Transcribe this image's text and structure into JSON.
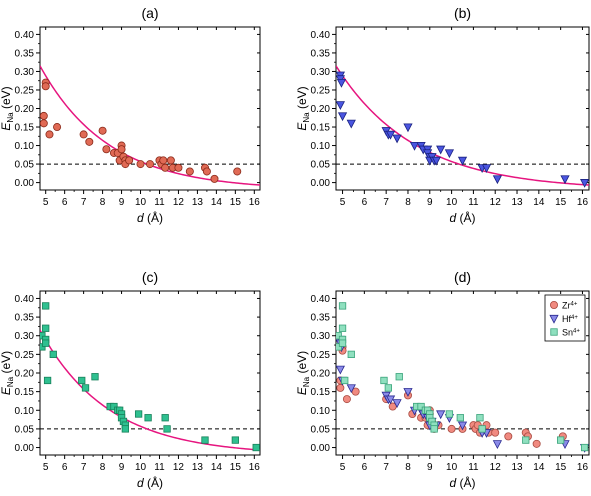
{
  "figure": {
    "panels": [
      "(a)",
      "(b)",
      "(c)",
      "(d)"
    ]
  },
  "chart_data": [
    {
      "type": "scatter",
      "title": "(a)",
      "xlabel_main": "d",
      "xlabel_unit": "(Å)",
      "ylabel_main": "E",
      "ylabel_sub": "Na",
      "ylabel_unit": "(eV)",
      "xlim": [
        4.7,
        16.3
      ],
      "ylim": [
        -0.02,
        0.42
      ],
      "xticks": [
        5,
        6,
        7,
        8,
        9,
        10,
        11,
        12,
        13,
        14,
        15,
        16
      ],
      "yticks": [
        "0.00",
        "0.05",
        "0.10",
        "0.15",
        "0.20",
        "0.25",
        "0.30",
        "0.35",
        "0.40"
      ],
      "marker": "circle",
      "color": "#e06a55",
      "edge": "#8a2a1a",
      "reference_line": 0.05,
      "fit_color": "#e6157f",
      "fit": {
        "a": 0.335,
        "d0": 4.7,
        "lambda": 3.6,
        "c": -0.02
      },
      "points": [
        [
          4.9,
          0.18
        ],
        [
          4.9,
          0.16
        ],
        [
          5.0,
          0.27
        ],
        [
          5.0,
          0.26
        ],
        [
          5.2,
          0.13
        ],
        [
          5.6,
          0.15
        ],
        [
          7.0,
          0.13
        ],
        [
          7.3,
          0.11
        ],
        [
          8.0,
          0.14
        ],
        [
          8.2,
          0.09
        ],
        [
          8.6,
          0.08
        ],
        [
          8.8,
          0.08
        ],
        [
          8.9,
          0.06
        ],
        [
          9.0,
          0.1
        ],
        [
          9.0,
          0.09
        ],
        [
          9.1,
          0.07
        ],
        [
          9.2,
          0.06
        ],
        [
          9.2,
          0.05
        ],
        [
          9.4,
          0.06
        ],
        [
          10.0,
          0.05
        ],
        [
          10.5,
          0.05
        ],
        [
          11.0,
          0.06
        ],
        [
          11.1,
          0.05
        ],
        [
          11.2,
          0.06
        ],
        [
          11.3,
          0.04
        ],
        [
          11.6,
          0.06
        ],
        [
          11.7,
          0.04
        ],
        [
          12.0,
          0.04
        ],
        [
          12.6,
          0.03
        ],
        [
          13.4,
          0.04
        ],
        [
          13.5,
          0.03
        ],
        [
          13.9,
          0.01
        ],
        [
          15.1,
          0.03
        ]
      ]
    },
    {
      "type": "scatter",
      "title": "(b)",
      "xlabel_main": "d",
      "xlabel_unit": "(Å)",
      "ylabel_main": "E",
      "ylabel_sub": "Na",
      "ylabel_unit": "(eV)",
      "xlim": [
        4.7,
        16.3
      ],
      "ylim": [
        -0.02,
        0.42
      ],
      "xticks": [
        5,
        6,
        7,
        8,
        9,
        10,
        11,
        12,
        13,
        14,
        15,
        16
      ],
      "yticks": [
        "0.00",
        "0.05",
        "0.10",
        "0.15",
        "0.20",
        "0.25",
        "0.30",
        "0.35",
        "0.40"
      ],
      "marker": "triangle-down",
      "color": "#4a55e0",
      "edge": "#1a2280",
      "reference_line": 0.05,
      "fit_color": "#e6157f",
      "fit": {
        "a": 0.335,
        "d0": 4.7,
        "lambda": 3.6,
        "c": -0.02
      },
      "points": [
        [
          4.9,
          0.29
        ],
        [
          4.9,
          0.28
        ],
        [
          4.95,
          0.27
        ],
        [
          4.9,
          0.21
        ],
        [
          5.0,
          0.18
        ],
        [
          5.4,
          0.16
        ],
        [
          7.0,
          0.14
        ],
        [
          7.1,
          0.13
        ],
        [
          7.2,
          0.13
        ],
        [
          7.5,
          0.12
        ],
        [
          8.0,
          0.15
        ],
        [
          8.3,
          0.1
        ],
        [
          8.6,
          0.1
        ],
        [
          8.7,
          0.09
        ],
        [
          8.9,
          0.09
        ],
        [
          8.9,
          0.08
        ],
        [
          9.0,
          0.07
        ],
        [
          9.0,
          0.06
        ],
        [
          9.1,
          0.07
        ],
        [
          9.2,
          0.06
        ],
        [
          9.3,
          0.06
        ],
        [
          9.5,
          0.09
        ],
        [
          9.9,
          0.08
        ],
        [
          10.5,
          0.06
        ],
        [
          11.4,
          0.04
        ],
        [
          11.6,
          0.04
        ],
        [
          12.1,
          0.01
        ],
        [
          15.2,
          0.01
        ],
        [
          16.1,
          0.0
        ]
      ]
    },
    {
      "type": "scatter",
      "title": "(c)",
      "xlabel_main": "d",
      "xlabel_unit": "(Å)",
      "ylabel_main": "E",
      "ylabel_sub": "Na",
      "ylabel_unit": "(eV)",
      "xlim": [
        4.7,
        16.3
      ],
      "ylim": [
        -0.02,
        0.42
      ],
      "xticks": [
        5,
        6,
        7,
        8,
        9,
        10,
        11,
        12,
        13,
        14,
        15,
        16
      ],
      "yticks": [
        "0.00",
        "0.05",
        "0.10",
        "0.15",
        "0.20",
        "0.25",
        "0.30",
        "0.35",
        "0.40"
      ],
      "marker": "square",
      "color": "#2fc090",
      "edge": "#17805a",
      "reference_line": 0.05,
      "fit_color": "#e6157f",
      "fit": {
        "a": 0.335,
        "d0": 4.7,
        "lambda": 3.6,
        "c": -0.02
      },
      "points": [
        [
          4.8,
          0.3
        ],
        [
          4.8,
          0.27
        ],
        [
          5.0,
          0.38
        ],
        [
          5.0,
          0.32
        ],
        [
          5.0,
          0.29
        ],
        [
          5.0,
          0.28
        ],
        [
          5.1,
          0.18
        ],
        [
          5.4,
          0.25
        ],
        [
          6.9,
          0.18
        ],
        [
          7.1,
          0.16
        ],
        [
          7.6,
          0.19
        ],
        [
          8.4,
          0.11
        ],
        [
          8.6,
          0.11
        ],
        [
          8.8,
          0.1
        ],
        [
          8.9,
          0.1
        ],
        [
          9.0,
          0.09
        ],
        [
          9.0,
          0.08
        ],
        [
          9.1,
          0.07
        ],
        [
          9.2,
          0.06
        ],
        [
          9.2,
          0.05
        ],
        [
          9.9,
          0.09
        ],
        [
          10.4,
          0.08
        ],
        [
          11.3,
          0.08
        ],
        [
          11.4,
          0.05
        ],
        [
          13.4,
          0.02
        ],
        [
          15.0,
          0.02
        ],
        [
          16.1,
          0.0
        ]
      ]
    },
    {
      "type": "scatter",
      "title": "(d)",
      "xlabel_main": "d",
      "xlabel_unit": "(Å)",
      "ylabel_main": "E",
      "ylabel_sub": "Na",
      "ylabel_unit": "(eV)",
      "xlim": [
        4.7,
        16.3
      ],
      "ylim": [
        -0.02,
        0.42
      ],
      "xticks": [
        5,
        6,
        7,
        8,
        9,
        10,
        11,
        12,
        13,
        14,
        15,
        16
      ],
      "yticks": [
        "0.00",
        "0.05",
        "0.10",
        "0.15",
        "0.20",
        "0.25",
        "0.30",
        "0.35",
        "0.40"
      ],
      "reference_line": 0.05,
      "legend_position": "top-right",
      "series": [
        {
          "name": "Zr",
          "charge": "4+",
          "marker": "circle",
          "color": "#f08a80",
          "edge": "#a84a40",
          "points": [
            [
              4.9,
              0.18
            ],
            [
              4.9,
              0.16
            ],
            [
              5.0,
              0.27
            ],
            [
              5.0,
              0.26
            ],
            [
              5.2,
              0.13
            ],
            [
              5.6,
              0.15
            ],
            [
              7.0,
              0.13
            ],
            [
              7.3,
              0.11
            ],
            [
              8.0,
              0.14
            ],
            [
              8.2,
              0.09
            ],
            [
              8.6,
              0.08
            ],
            [
              8.8,
              0.08
            ],
            [
              8.9,
              0.06
            ],
            [
              9.0,
              0.1
            ],
            [
              9.0,
              0.09
            ],
            [
              9.1,
              0.07
            ],
            [
              9.2,
              0.06
            ],
            [
              9.2,
              0.05
            ],
            [
              9.4,
              0.06
            ],
            [
              10.0,
              0.05
            ],
            [
              10.5,
              0.05
            ],
            [
              11.0,
              0.06
            ],
            [
              11.1,
              0.05
            ],
            [
              11.2,
              0.06
            ],
            [
              11.3,
              0.04
            ],
            [
              11.6,
              0.06
            ],
            [
              11.7,
              0.04
            ],
            [
              12.0,
              0.04
            ],
            [
              12.6,
              0.03
            ],
            [
              13.4,
              0.04
            ],
            [
              13.5,
              0.03
            ],
            [
              13.9,
              0.01
            ],
            [
              15.1,
              0.03
            ]
          ]
        },
        {
          "name": "Hf",
          "charge": "4+",
          "marker": "triangle-down",
          "color": "#8a8ae8",
          "edge": "#2a2a90",
          "points": [
            [
              4.9,
              0.29
            ],
            [
              4.9,
              0.28
            ],
            [
              4.95,
              0.27
            ],
            [
              4.9,
              0.21
            ],
            [
              5.0,
              0.18
            ],
            [
              5.4,
              0.16
            ],
            [
              7.0,
              0.14
            ],
            [
              7.1,
              0.13
            ],
            [
              7.2,
              0.13
            ],
            [
              7.5,
              0.12
            ],
            [
              8.0,
              0.15
            ],
            [
              8.3,
              0.1
            ],
            [
              8.6,
              0.1
            ],
            [
              8.7,
              0.09
            ],
            [
              8.9,
              0.09
            ],
            [
              8.9,
              0.08
            ],
            [
              9.0,
              0.07
            ],
            [
              9.0,
              0.06
            ],
            [
              9.1,
              0.07
            ],
            [
              9.2,
              0.06
            ],
            [
              9.3,
              0.06
            ],
            [
              9.5,
              0.09
            ],
            [
              9.9,
              0.08
            ],
            [
              10.5,
              0.06
            ],
            [
              11.4,
              0.04
            ],
            [
              11.6,
              0.04
            ],
            [
              12.1,
              0.01
            ],
            [
              15.2,
              0.01
            ],
            [
              16.1,
              0.0
            ]
          ]
        },
        {
          "name": "Sn",
          "charge": "4+",
          "marker": "square",
          "color": "#8fe0bf",
          "edge": "#3aa37b",
          "points": [
            [
              4.8,
              0.3
            ],
            [
              4.8,
              0.27
            ],
            [
              5.0,
              0.38
            ],
            [
              5.0,
              0.32
            ],
            [
              5.0,
              0.29
            ],
            [
              5.0,
              0.28
            ],
            [
              5.1,
              0.18
            ],
            [
              5.4,
              0.25
            ],
            [
              6.9,
              0.18
            ],
            [
              7.1,
              0.16
            ],
            [
              7.6,
              0.19
            ],
            [
              8.4,
              0.11
            ],
            [
              8.6,
              0.11
            ],
            [
              8.8,
              0.1
            ],
            [
              8.9,
              0.1
            ],
            [
              9.0,
              0.09
            ],
            [
              9.0,
              0.08
            ],
            [
              9.1,
              0.07
            ],
            [
              9.2,
              0.06
            ],
            [
              9.2,
              0.05
            ],
            [
              9.9,
              0.09
            ],
            [
              10.4,
              0.08
            ],
            [
              11.3,
              0.08
            ],
            [
              11.4,
              0.05
            ],
            [
              13.4,
              0.02
            ],
            [
              15.0,
              0.02
            ],
            [
              16.1,
              0.0
            ]
          ]
        }
      ]
    }
  ]
}
